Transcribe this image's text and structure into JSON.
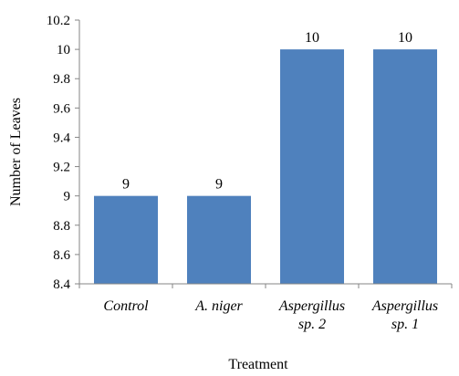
{
  "chart_data": {
    "type": "bar",
    "title": "",
    "xlabel": "Treatment",
    "ylabel": "Number of Leaves",
    "categories": [
      [
        "Control"
      ],
      [
        "A. niger"
      ],
      [
        "Aspergillus",
        "sp. 2"
      ],
      [
        "Aspergillus",
        "sp. 1"
      ]
    ],
    "values": [
      9,
      9,
      10,
      10
    ],
    "data_labels": [
      "9",
      "9",
      "10",
      "10"
    ],
    "ylim": [
      8.4,
      10.2
    ],
    "yticks": [
      "8.4",
      "8.6",
      "8.8",
      "9",
      "9.2",
      "9.4",
      "9.6",
      "9.8",
      "10",
      "10.2"
    ],
    "grid": false,
    "legend": "none",
    "bar_color": "#4f81bd"
  }
}
